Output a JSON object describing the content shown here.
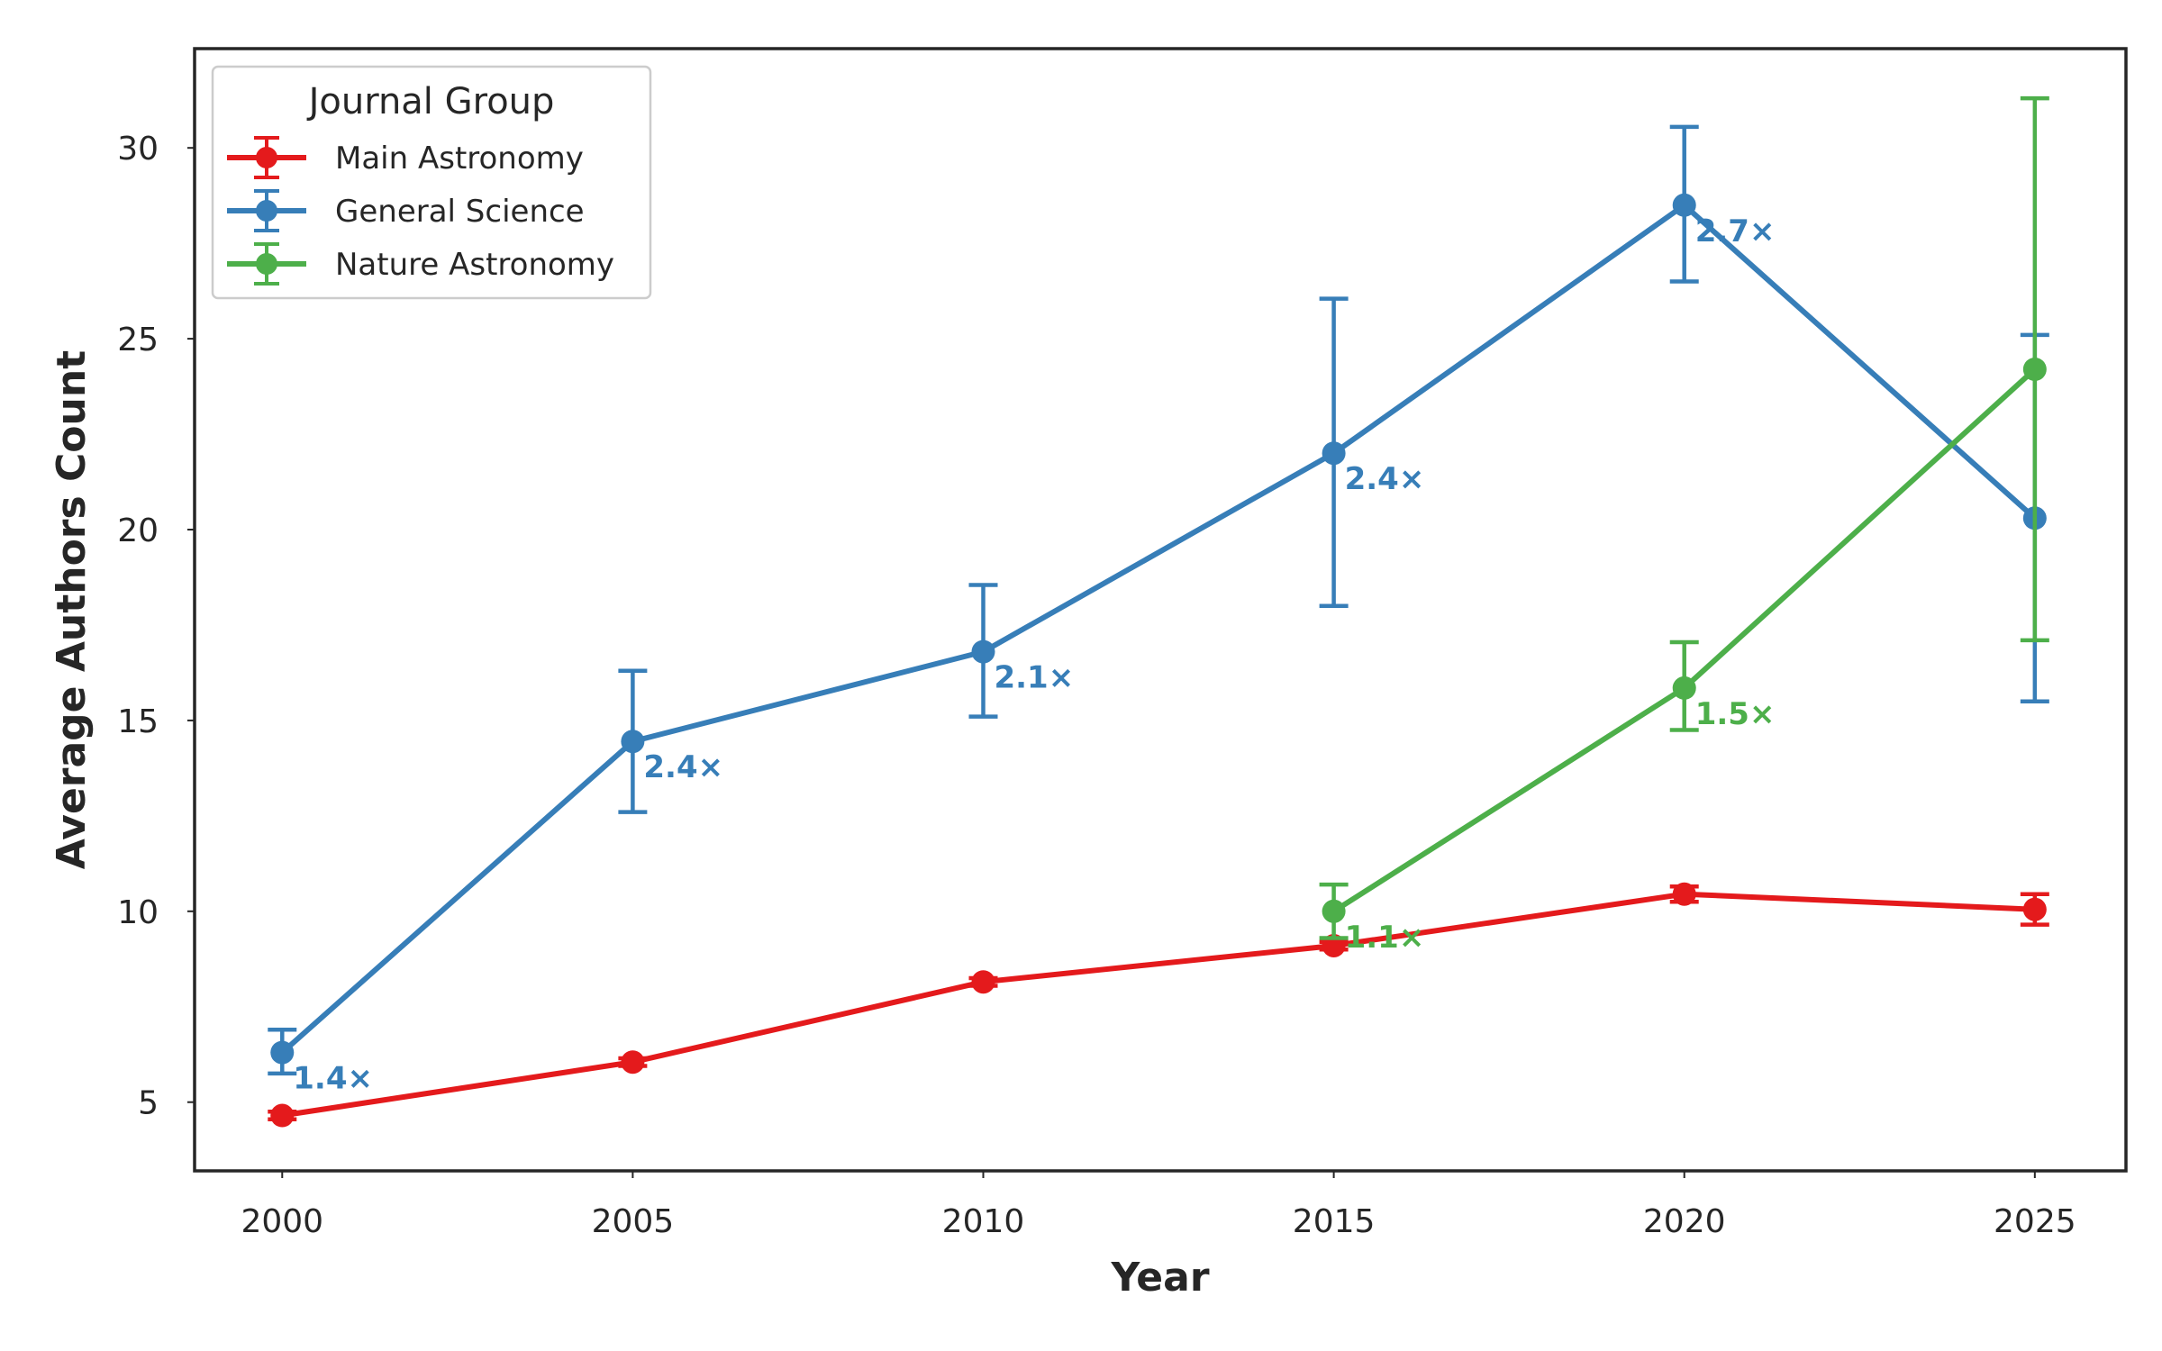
{
  "chart_data": {
    "type": "line",
    "xlabel": "Year",
    "ylabel": "Average Authors Count",
    "x": [
      2000,
      2005,
      2010,
      2015,
      2020,
      2025
    ],
    "x_ticks": [
      "2000",
      "2005",
      "2010",
      "2015",
      "2020",
      "2025"
    ],
    "y_ticks": [
      "5",
      "10",
      "15",
      "20",
      "25",
      "30"
    ],
    "xlim": [
      1998.75,
      2026.3
    ],
    "ylim": [
      3.2,
      32.6
    ],
    "grid": false,
    "legend": {
      "title": "Journal Group",
      "placement": "top-left"
    },
    "series": [
      {
        "name": "Main Astronomy",
        "color": "#e41a1c",
        "x": [
          2000,
          2005,
          2010,
          2015,
          2020,
          2025
        ],
        "y": [
          4.65,
          6.05,
          8.15,
          9.1,
          10.45,
          10.05
        ],
        "err_low": [
          4.55,
          5.95,
          8.05,
          9.0,
          10.25,
          9.65
        ],
        "err_high": [
          4.75,
          6.15,
          8.25,
          9.2,
          10.65,
          10.45
        ]
      },
      {
        "name": "General Science",
        "color": "#377eb8",
        "x": [
          2000,
          2005,
          2010,
          2015,
          2020,
          2025
        ],
        "y": [
          6.3,
          14.45,
          16.8,
          22.0,
          28.5,
          20.3
        ],
        "err_low": [
          5.75,
          12.6,
          15.1,
          18.0,
          26.5,
          15.5
        ],
        "err_high": [
          6.9,
          16.3,
          18.55,
          26.05,
          30.55,
          25.1
        ]
      },
      {
        "name": "Nature Astronomy",
        "color": "#4daf4a",
        "x": [
          2015,
          2020,
          2025
        ],
        "y": [
          10.0,
          15.85,
          24.2
        ],
        "err_low": [
          9.3,
          14.75,
          17.1
        ],
        "err_high": [
          10.7,
          17.05,
          31.3
        ]
      }
    ],
    "annotations": [
      {
        "text": "1.4×",
        "x": 2000,
        "y": 6.3,
        "color": "#377eb8"
      },
      {
        "text": "2.4×",
        "x": 2005,
        "y": 14.45,
        "color": "#377eb8"
      },
      {
        "text": "2.1×",
        "x": 2010,
        "y": 16.8,
        "color": "#377eb8"
      },
      {
        "text": "2.4×",
        "x": 2015,
        "y": 22.0,
        "color": "#377eb8"
      },
      {
        "text": "2.7×",
        "x": 2020,
        "y": 28.5,
        "color": "#377eb8"
      },
      {
        "text": "1.1×",
        "x": 2015,
        "y": 10.0,
        "color": "#4daf4a"
      },
      {
        "text": "1.5×",
        "x": 2020,
        "y": 15.85,
        "color": "#4daf4a"
      }
    ]
  }
}
